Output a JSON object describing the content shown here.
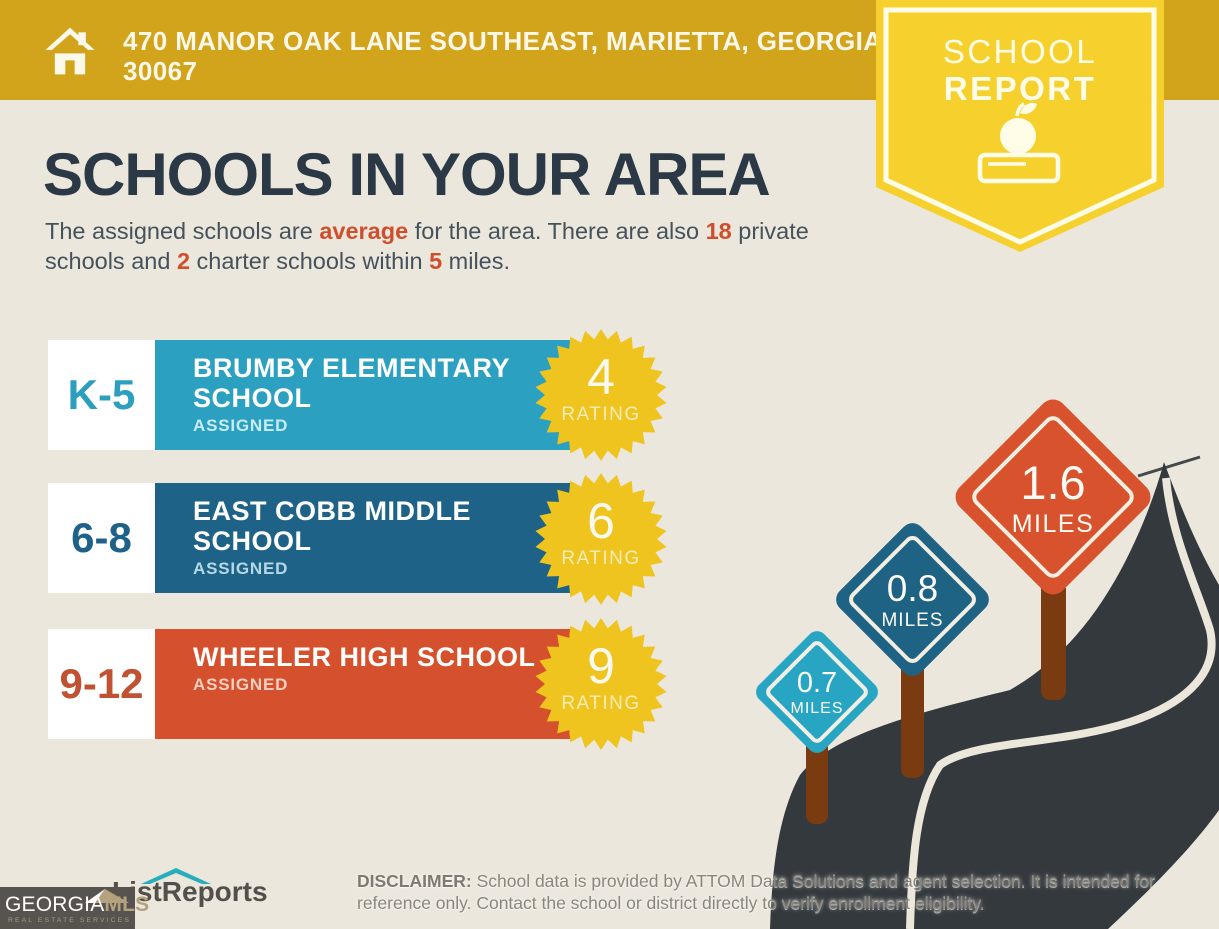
{
  "header": {
    "address_line1": "470 MANOR OAK LANE SOUTHEAST, MARIETTA, GEORGIA",
    "address_line2": "30067"
  },
  "badge": {
    "line1": "SCHOOL",
    "line2": "REPORT",
    "icon": "apple-on-book-icon"
  },
  "main": {
    "title": "SCHOOLS IN YOUR AREA",
    "intro_segments": [
      {
        "text": "The assigned schools are "
      },
      {
        "text": "average",
        "highlight": true
      },
      {
        "text": " for the area. There are also "
      },
      {
        "text": "18",
        "highlight": true
      },
      {
        "text": " private schools and "
      },
      {
        "text": "2",
        "highlight": true
      },
      {
        "text": " charter schools within "
      },
      {
        "text": "5",
        "highlight": true
      },
      {
        "text": " miles."
      }
    ]
  },
  "schools": [
    {
      "grades": "K-5",
      "name": "BRUMBY ELEMENTARY SCHOOL",
      "status": "ASSIGNED",
      "rating": "4",
      "rating_label": "RATING",
      "bar_color": "#2BA0C0"
    },
    {
      "grades": "6-8",
      "name": "EAST COBB MIDDLE SCHOOL",
      "status": "ASSIGNED",
      "rating": "6",
      "rating_label": "RATING",
      "bar_color": "#1E6387"
    },
    {
      "grades": "9-12",
      "name": "WHEELER HIGH SCHOOL",
      "status": "ASSIGNED",
      "rating": "9",
      "rating_label": "RATING",
      "bar_color": "#D5502D"
    }
  ],
  "distance_signs": [
    {
      "value": "0.7",
      "unit": "MILES",
      "color": "#29A5C4"
    },
    {
      "value": "0.8",
      "unit": "MILES",
      "color": "#1E6284"
    },
    {
      "value": "1.6",
      "unit": "MILES",
      "color": "#D7522D"
    }
  ],
  "footer": {
    "listreports_text": "ListReports",
    "georgiamls": {
      "part1": "GEORGIA",
      "part2": "MLS",
      "subline": "REAL ESTATE SERVICES"
    },
    "disclaimer_label": "DISCLAIMER:",
    "disclaimer_text": " School data is provided by ATTOM Data Solutions and agent selection. It is intended for reference only. Contact the school or district directly to verify enrollment eligibility."
  },
  "colors": {
    "background": "#EBE7DC",
    "topbar_gold": "#D2A41C",
    "badge_yellow": "#F6D12D",
    "heading_navy": "#2B3845",
    "body_text": "#45525C",
    "accent_red": "#CE4F2C",
    "star_yellow": "#EFC41E",
    "road": "#33393D",
    "road_line": "#ECE7DB",
    "post_brown": "#7B3B10",
    "georgiamls_tan": "#B4A17D"
  }
}
